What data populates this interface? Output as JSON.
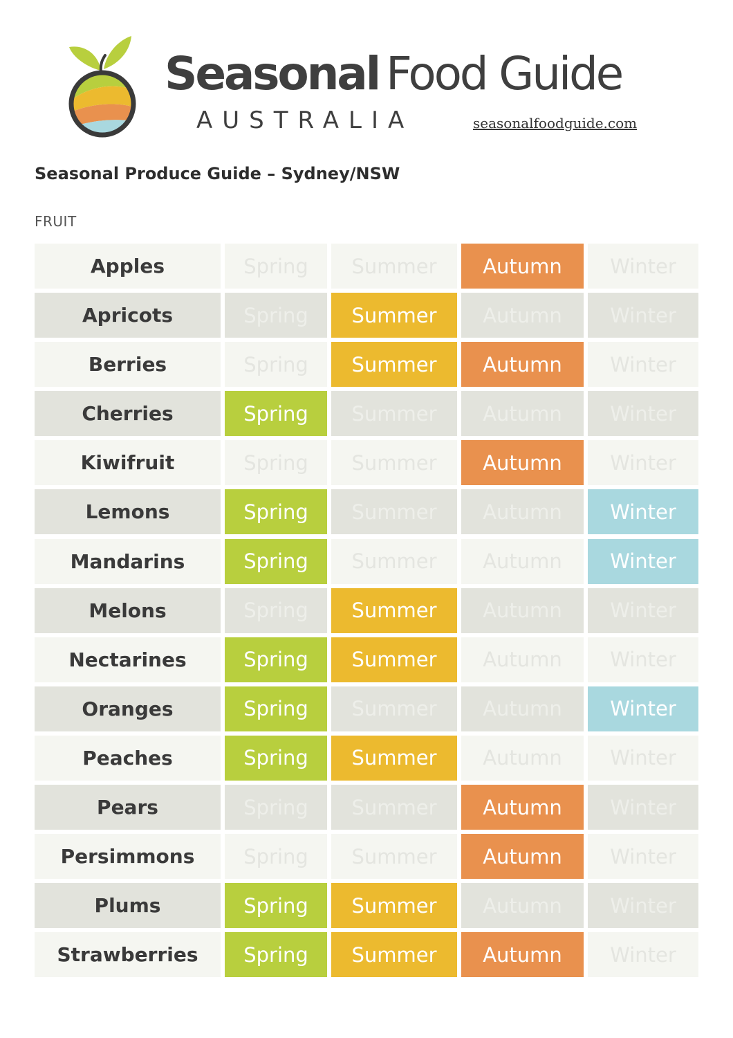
{
  "header": {
    "brand_bold": "Seasonal",
    "brand_rest": "Food Guide",
    "country": "AUSTRALIA",
    "website": "seasonalfoodguide.com",
    "logo_icon": "fruit-landscape-logo-icon"
  },
  "title": "Seasonal Produce Guide – Sydney/NSW",
  "section": "FRUIT",
  "seasons": [
    "Spring",
    "Summer",
    "Autumn",
    "Winter"
  ],
  "colors": {
    "spring": "#b8cf3e",
    "summer": "#ecba2f",
    "autumn": "#e9914e",
    "winter": "#a9d8df",
    "row_light": "#f5f6f1",
    "row_dark": "#e2e3dc",
    "text_dark": "#3a3a3a"
  },
  "fruits": [
    {
      "name": "Apples",
      "in_season": [
        false,
        false,
        true,
        false
      ]
    },
    {
      "name": "Apricots",
      "in_season": [
        false,
        true,
        false,
        false
      ]
    },
    {
      "name": "Berries",
      "in_season": [
        false,
        true,
        true,
        false
      ]
    },
    {
      "name": "Cherries",
      "in_season": [
        true,
        false,
        false,
        false
      ]
    },
    {
      "name": "Kiwifruit",
      "in_season": [
        false,
        false,
        true,
        false
      ]
    },
    {
      "name": "Lemons",
      "in_season": [
        true,
        false,
        false,
        true
      ]
    },
    {
      "name": "Mandarins",
      "in_season": [
        true,
        false,
        false,
        true
      ]
    },
    {
      "name": "Melons",
      "in_season": [
        false,
        true,
        false,
        false
      ]
    },
    {
      "name": "Nectarines",
      "in_season": [
        true,
        true,
        false,
        false
      ]
    },
    {
      "name": "Oranges",
      "in_season": [
        true,
        false,
        false,
        true
      ]
    },
    {
      "name": "Peaches",
      "in_season": [
        true,
        true,
        false,
        false
      ]
    },
    {
      "name": "Pears",
      "in_season": [
        false,
        false,
        true,
        false
      ]
    },
    {
      "name": "Persimmons",
      "in_season": [
        false,
        false,
        true,
        false
      ]
    },
    {
      "name": "Plums",
      "in_season": [
        true,
        true,
        false,
        false
      ]
    },
    {
      "name": "Strawberries",
      "in_season": [
        true,
        true,
        true,
        false
      ]
    }
  ]
}
